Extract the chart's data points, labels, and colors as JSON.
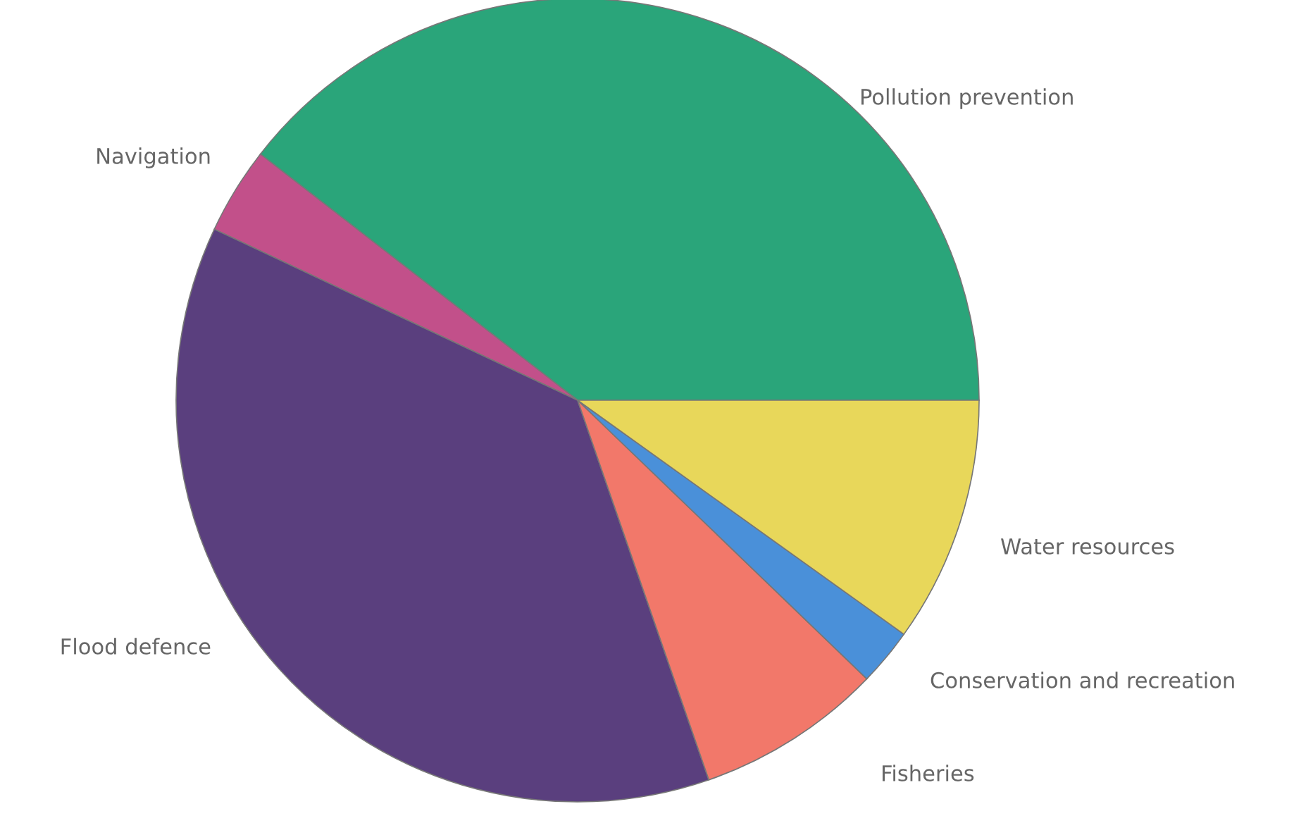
{
  "chart_data": {
    "type": "pie",
    "categories": [
      "Pollution prevention",
      "Navigation",
      "Flood defence",
      "Fisheries",
      "Conservation and recreation",
      "Water resources"
    ],
    "values": [
      39.5,
      3.5,
      37.3,
      7.5,
      2.3,
      9.9
    ],
    "colors": [
      "#2aa57a",
      "#c2508a",
      "#5a3f7e",
      "#f2786a",
      "#4a90d9",
      "#e8d75a"
    ]
  }
}
